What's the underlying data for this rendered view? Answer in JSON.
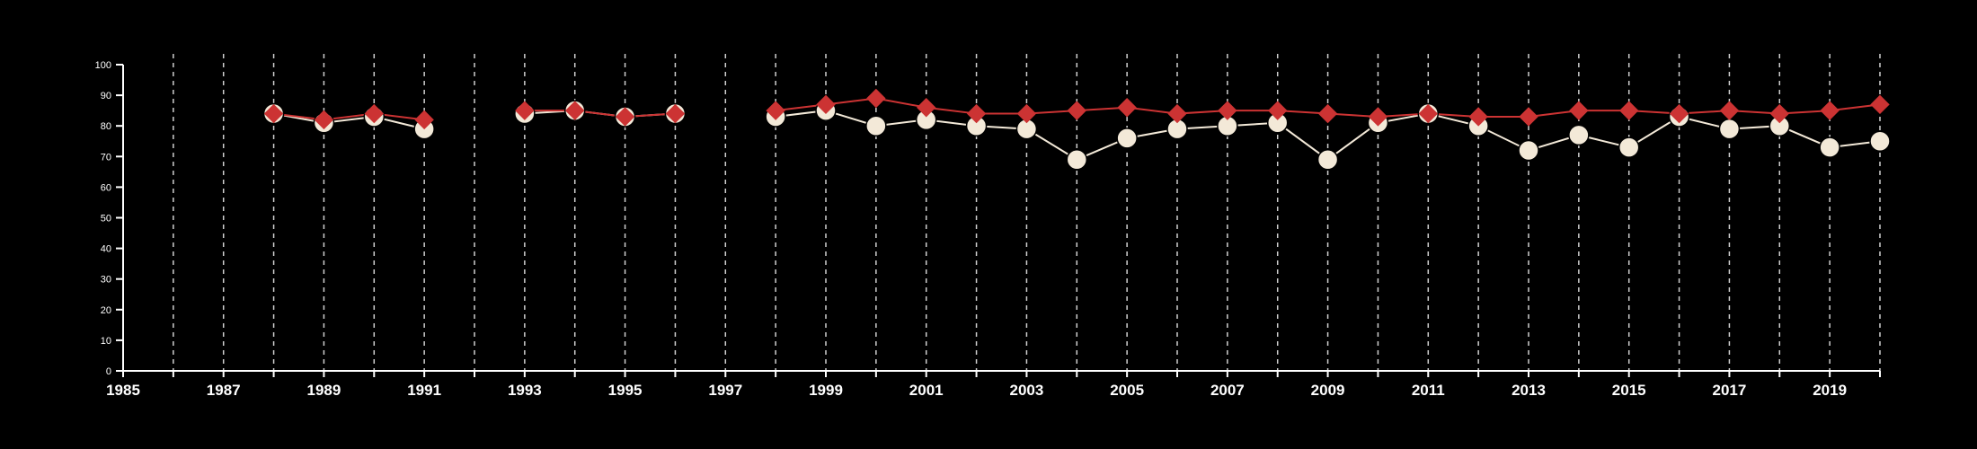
{
  "chart_data": {
    "type": "line",
    "title": "",
    "xlabel": "",
    "ylabel": "",
    "xlim": [
      1985,
      2020
    ],
    "ylim": [
      0,
      100
    ],
    "x_tick_labels": [
      "1985",
      "1987",
      "1989",
      "1991",
      "1993",
      "1995",
      "1997",
      "1999",
      "2001",
      "2003",
      "2005",
      "2007",
      "2009",
      "2011",
      "2013",
      "2015",
      "2017",
      "2019"
    ],
    "y_tick_labels": [
      "0",
      "10",
      "20",
      "30",
      "40",
      "50",
      "60",
      "70",
      "80",
      "90",
      "100"
    ],
    "grid": "vertical dashed lines at each year",
    "colors": {
      "background": "#000000",
      "axis": "#ffffff",
      "grid": "#cfcfcf",
      "series_1": "#f3e9d8",
      "series_2": "#cc3333"
    },
    "series": [
      {
        "marker": "circle",
        "color": "#f3e9d8",
        "points": [
          [
            1988,
            84
          ],
          [
            1989,
            81
          ],
          [
            1990,
            83
          ],
          [
            1991,
            79
          ],
          [
            1993,
            84
          ],
          [
            1994,
            85
          ],
          [
            1995,
            83
          ],
          [
            1996,
            84
          ],
          [
            1998,
            83
          ],
          [
            1999,
            85
          ],
          [
            2000,
            80
          ],
          [
            2001,
            82
          ],
          [
            2002,
            80
          ],
          [
            2003,
            79
          ],
          [
            2004,
            69
          ],
          [
            2005,
            76
          ],
          [
            2006,
            79
          ],
          [
            2007,
            80
          ],
          [
            2008,
            81
          ],
          [
            2009,
            69
          ],
          [
            2010,
            81
          ],
          [
            2011,
            84
          ],
          [
            2012,
            80
          ],
          [
            2013,
            72
          ],
          [
            2014,
            77
          ],
          [
            2015,
            73
          ],
          [
            2016,
            83
          ],
          [
            2017,
            79
          ],
          [
            2018,
            80
          ],
          [
            2019,
            73
          ],
          [
            2020,
            75
          ]
        ]
      },
      {
        "marker": "diamond",
        "color": "#cc3333",
        "points": [
          [
            1988,
            84
          ],
          [
            1989,
            82
          ],
          [
            1990,
            84
          ],
          [
            1991,
            82
          ],
          [
            1993,
            85
          ],
          [
            1994,
            85
          ],
          [
            1995,
            83
          ],
          [
            1996,
            84
          ],
          [
            1998,
            85
          ],
          [
            1999,
            87
          ],
          [
            2000,
            89
          ],
          [
            2001,
            86
          ],
          [
            2002,
            84
          ],
          [
            2003,
            84
          ],
          [
            2004,
            85
          ],
          [
            2005,
            86
          ],
          [
            2006,
            84
          ],
          [
            2007,
            85
          ],
          [
            2008,
            85
          ],
          [
            2009,
            84
          ],
          [
            2010,
            83
          ],
          [
            2011,
            84
          ],
          [
            2012,
            83
          ],
          [
            2013,
            83
          ],
          [
            2014,
            85
          ],
          [
            2015,
            85
          ],
          [
            2016,
            84
          ],
          [
            2017,
            85
          ],
          [
            2018,
            84
          ],
          [
            2019,
            85
          ],
          [
            2020,
            87
          ]
        ]
      }
    ]
  }
}
